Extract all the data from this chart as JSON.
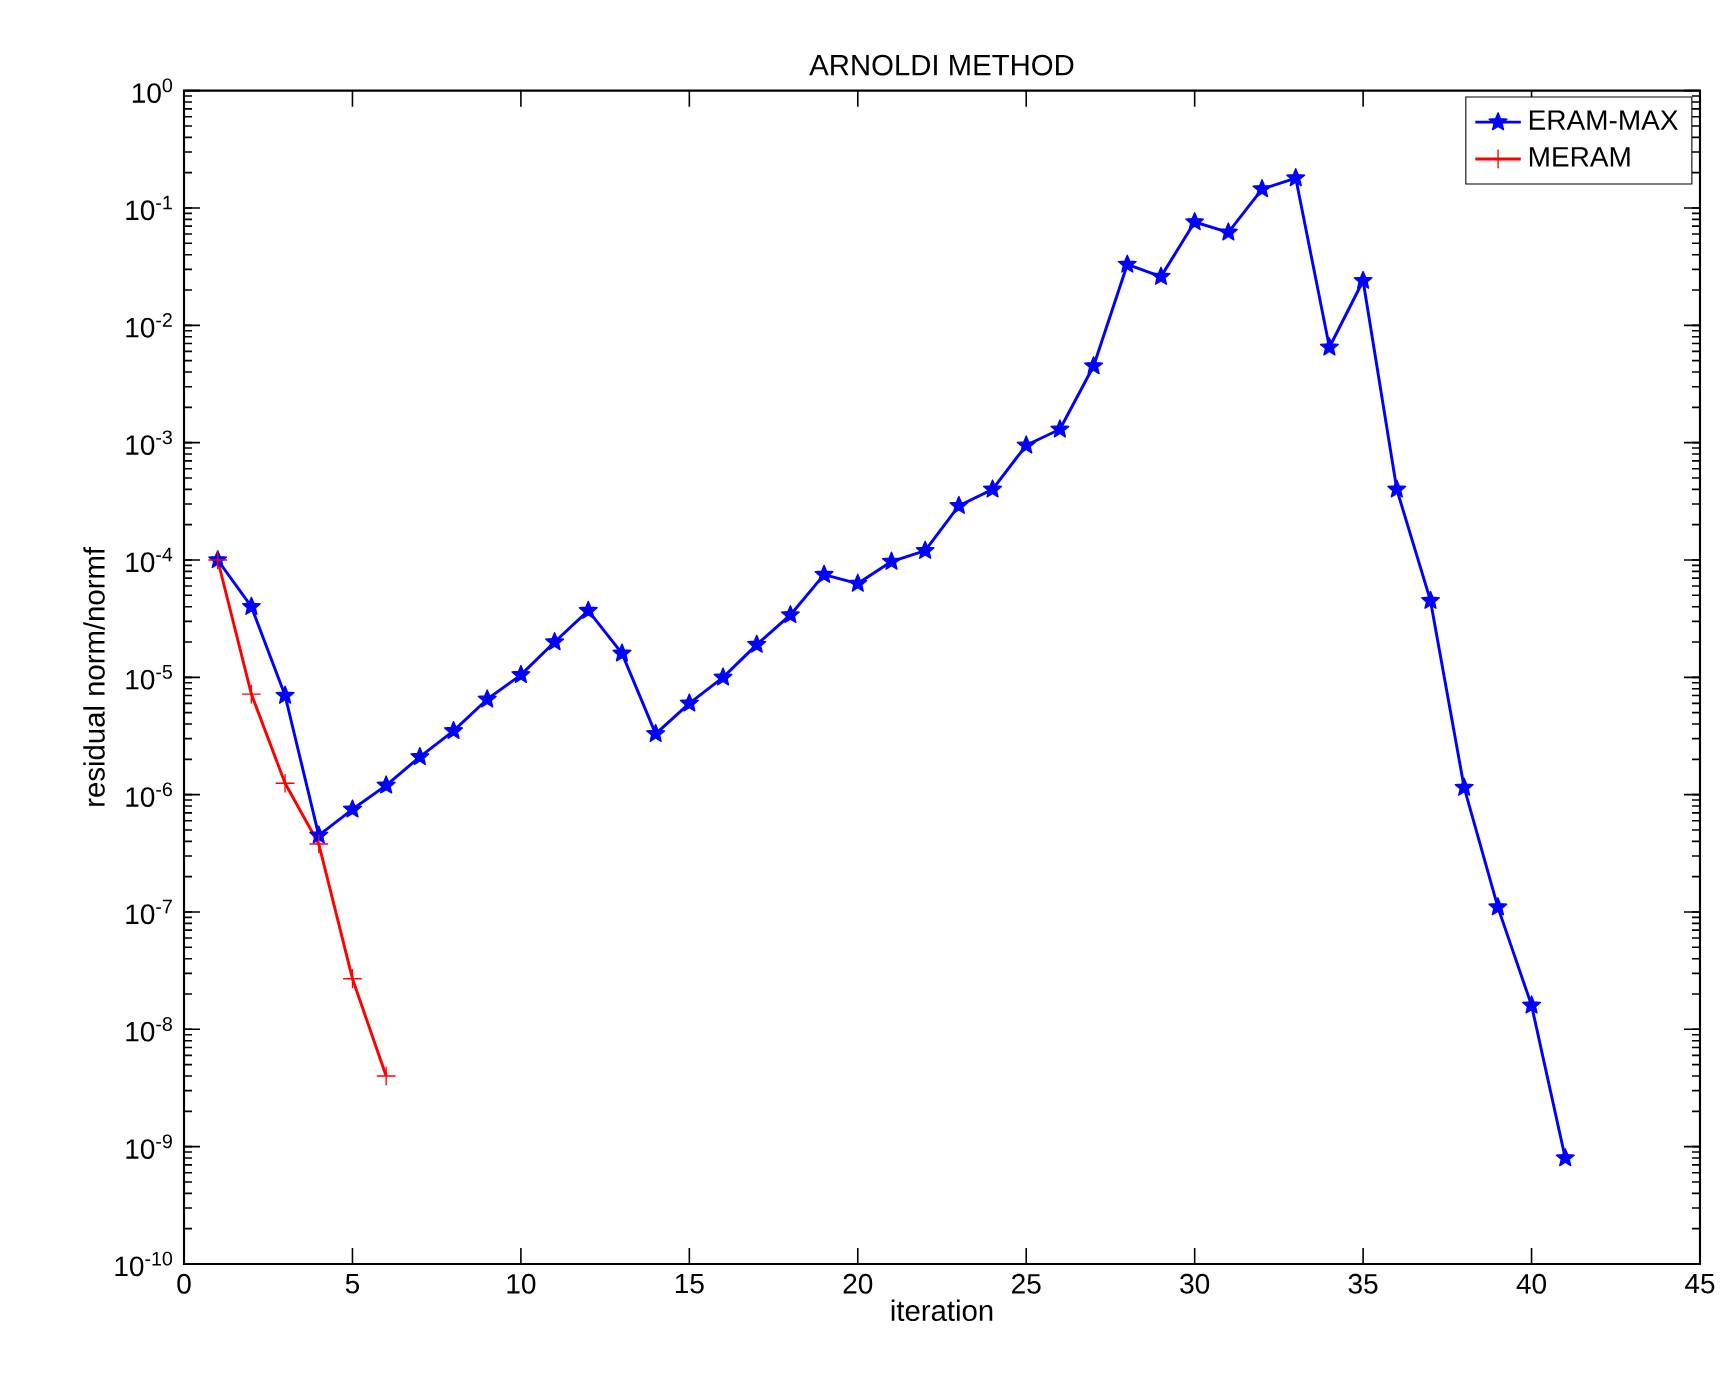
{
  "chart_data": {
    "type": "line",
    "title": "ARNOLDI METHOD",
    "xlabel": "iteration",
    "ylabel": "residual norm/normf",
    "log": "y",
    "legend": "top right",
    "grid": false,
    "xlim": [
      0,
      45
    ],
    "xticks": [
      0,
      5,
      10,
      15,
      20,
      25,
      30,
      35,
      40,
      45
    ],
    "ylim": [
      1e-10,
      1
    ],
    "yticks": [
      {
        "value": 1e-10,
        "label": "10$^{-10}$"
      },
      {
        "value": 1e-09,
        "label": "10$^{-9}$"
      },
      {
        "value": 1e-08,
        "label": "10$^{-8}$"
      },
      {
        "value": 1e-07,
        "label": "10$^{-7}$"
      },
      {
        "value": 1e-06,
        "label": "10$^{-6}$"
      },
      {
        "value": 1e-05,
        "label": "10$^{-5}$"
      },
      {
        "value": 0.0001,
        "label": "10$^{-4}$"
      },
      {
        "value": 0.001,
        "label": "10$^{-3}$"
      },
      {
        "value": 0.01,
        "label": "10$^{-2}$"
      },
      {
        "value": 0.1,
        "label": "10$^{-1}$"
      },
      {
        "value": 1,
        "label": "10$^{0}$"
      }
    ],
    "series": [
      {
        "name": "ERAM-MAX",
        "color": "#0000ff",
        "marker": "star",
        "line_style": "solid",
        "x": [
          1,
          2,
          3,
          4,
          5,
          6,
          7,
          8,
          9,
          10,
          11,
          12,
          13,
          14,
          15,
          16,
          17,
          18,
          19,
          20,
          21,
          22,
          23,
          24,
          25,
          26,
          27,
          28,
          29,
          30,
          31,
          32,
          33,
          34,
          35,
          36,
          37,
          38,
          39,
          40,
          41
        ],
        "values": [
          0.0001,
          4e-05,
          7e-06,
          4.5e-07,
          7.5e-07,
          1.2e-06,
          2.1e-06,
          3.5e-06,
          6.5e-06,
          1.05e-05,
          2e-05,
          3.7e-05,
          1.6e-05,
          3.3e-06,
          6e-06,
          1e-05,
          1.9e-05,
          3.4e-05,
          7.5e-05,
          6.3e-05,
          9.7e-05,
          0.00012,
          0.00029,
          0.0004,
          0.00095,
          0.0013,
          0.0045,
          0.033,
          0.026,
          0.076,
          0.062,
          0.145,
          0.18,
          0.0065,
          0.024,
          0.0004,
          4.5e-05,
          1.15e-06,
          1.1e-07,
          1.6e-08,
          8e-10
        ]
      },
      {
        "name": "MERAM",
        "color": "#ff0000",
        "marker": "cross",
        "line_style": "solid",
        "x": [
          1,
          2,
          3,
          4,
          5,
          6
        ],
        "values": [
          0.0001,
          7.2e-06,
          1.25e-06,
          3.8e-07,
          2.7e-08,
          4e-09
        ]
      }
    ]
  }
}
